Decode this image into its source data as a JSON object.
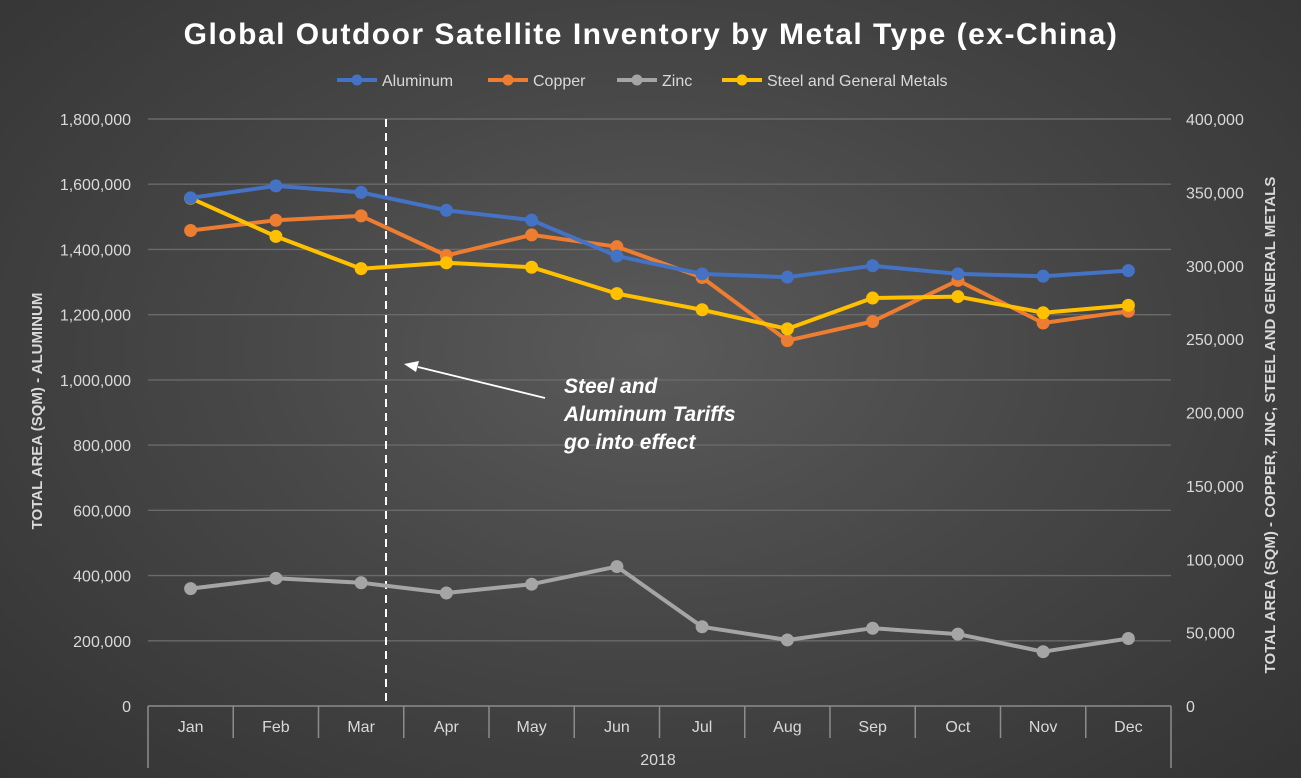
{
  "chart_data": {
    "type": "line",
    "title": "Global Outdoor Satellite Inventory by Metal Type (ex-China)",
    "categories": [
      "Jan",
      "Feb",
      "Mar",
      "Apr",
      "May",
      "Jun",
      "Jul",
      "Aug",
      "Sep",
      "Oct",
      "Nov",
      "Dec"
    ],
    "category_group": "2018",
    "y_left": {
      "label": "TOTAL AREA (SQM) - ALUMINUM",
      "range": [
        0,
        1800000
      ],
      "ticks": [
        "0",
        "200,000",
        "400,000",
        "600,000",
        "800,000",
        "1,000,000",
        "1,200,000",
        "1,400,000",
        "1,600,000",
        "1,800,000"
      ]
    },
    "y_right": {
      "label": "TOTAL AREA (SQM) - COPPER, ZINC, STEEL AND GENERAL METALS",
      "range": [
        0,
        400000
      ],
      "ticks": [
        "0",
        "50,000",
        "100,000",
        "150,000",
        "200,000",
        "250,000",
        "300,000",
        "350,000",
        "400,000"
      ]
    },
    "series": [
      {
        "name": "Aluminum",
        "color": "#4472c4",
        "axis": "left",
        "values": [
          1558000,
          1595000,
          1575000,
          1520000,
          1490000,
          1380000,
          1325000,
          1315000,
          1350000,
          1325000,
          1318000,
          1335000
        ]
      },
      {
        "name": "Copper",
        "color": "#ed7d31",
        "axis": "right",
        "values": [
          324000,
          331000,
          334000,
          307000,
          321000,
          313000,
          292000,
          249000,
          262000,
          290000,
          261000,
          269000
        ]
      },
      {
        "name": "Zinc",
        "color": "#a5a5a5",
        "axis": "right",
        "values": [
          80000,
          87000,
          84000,
          77000,
          83000,
          95000,
          54000,
          45000,
          53000,
          49000,
          37000,
          46000
        ]
      },
      {
        "name": "Steel and General Metals",
        "color": "#ffc000",
        "axis": "right",
        "values": [
          346000,
          320000,
          298000,
          302000,
          299000,
          281000,
          270000,
          257000,
          278000,
          279000,
          268000,
          273000
        ]
      }
    ],
    "marker_line": {
      "position": "between Mar and Apr",
      "style": "dashed white"
    },
    "annotation": {
      "lines": [
        "Steel and",
        "Aluminum Tariffs",
        "go into effect"
      ]
    },
    "grid": true,
    "legend": "top-center"
  }
}
